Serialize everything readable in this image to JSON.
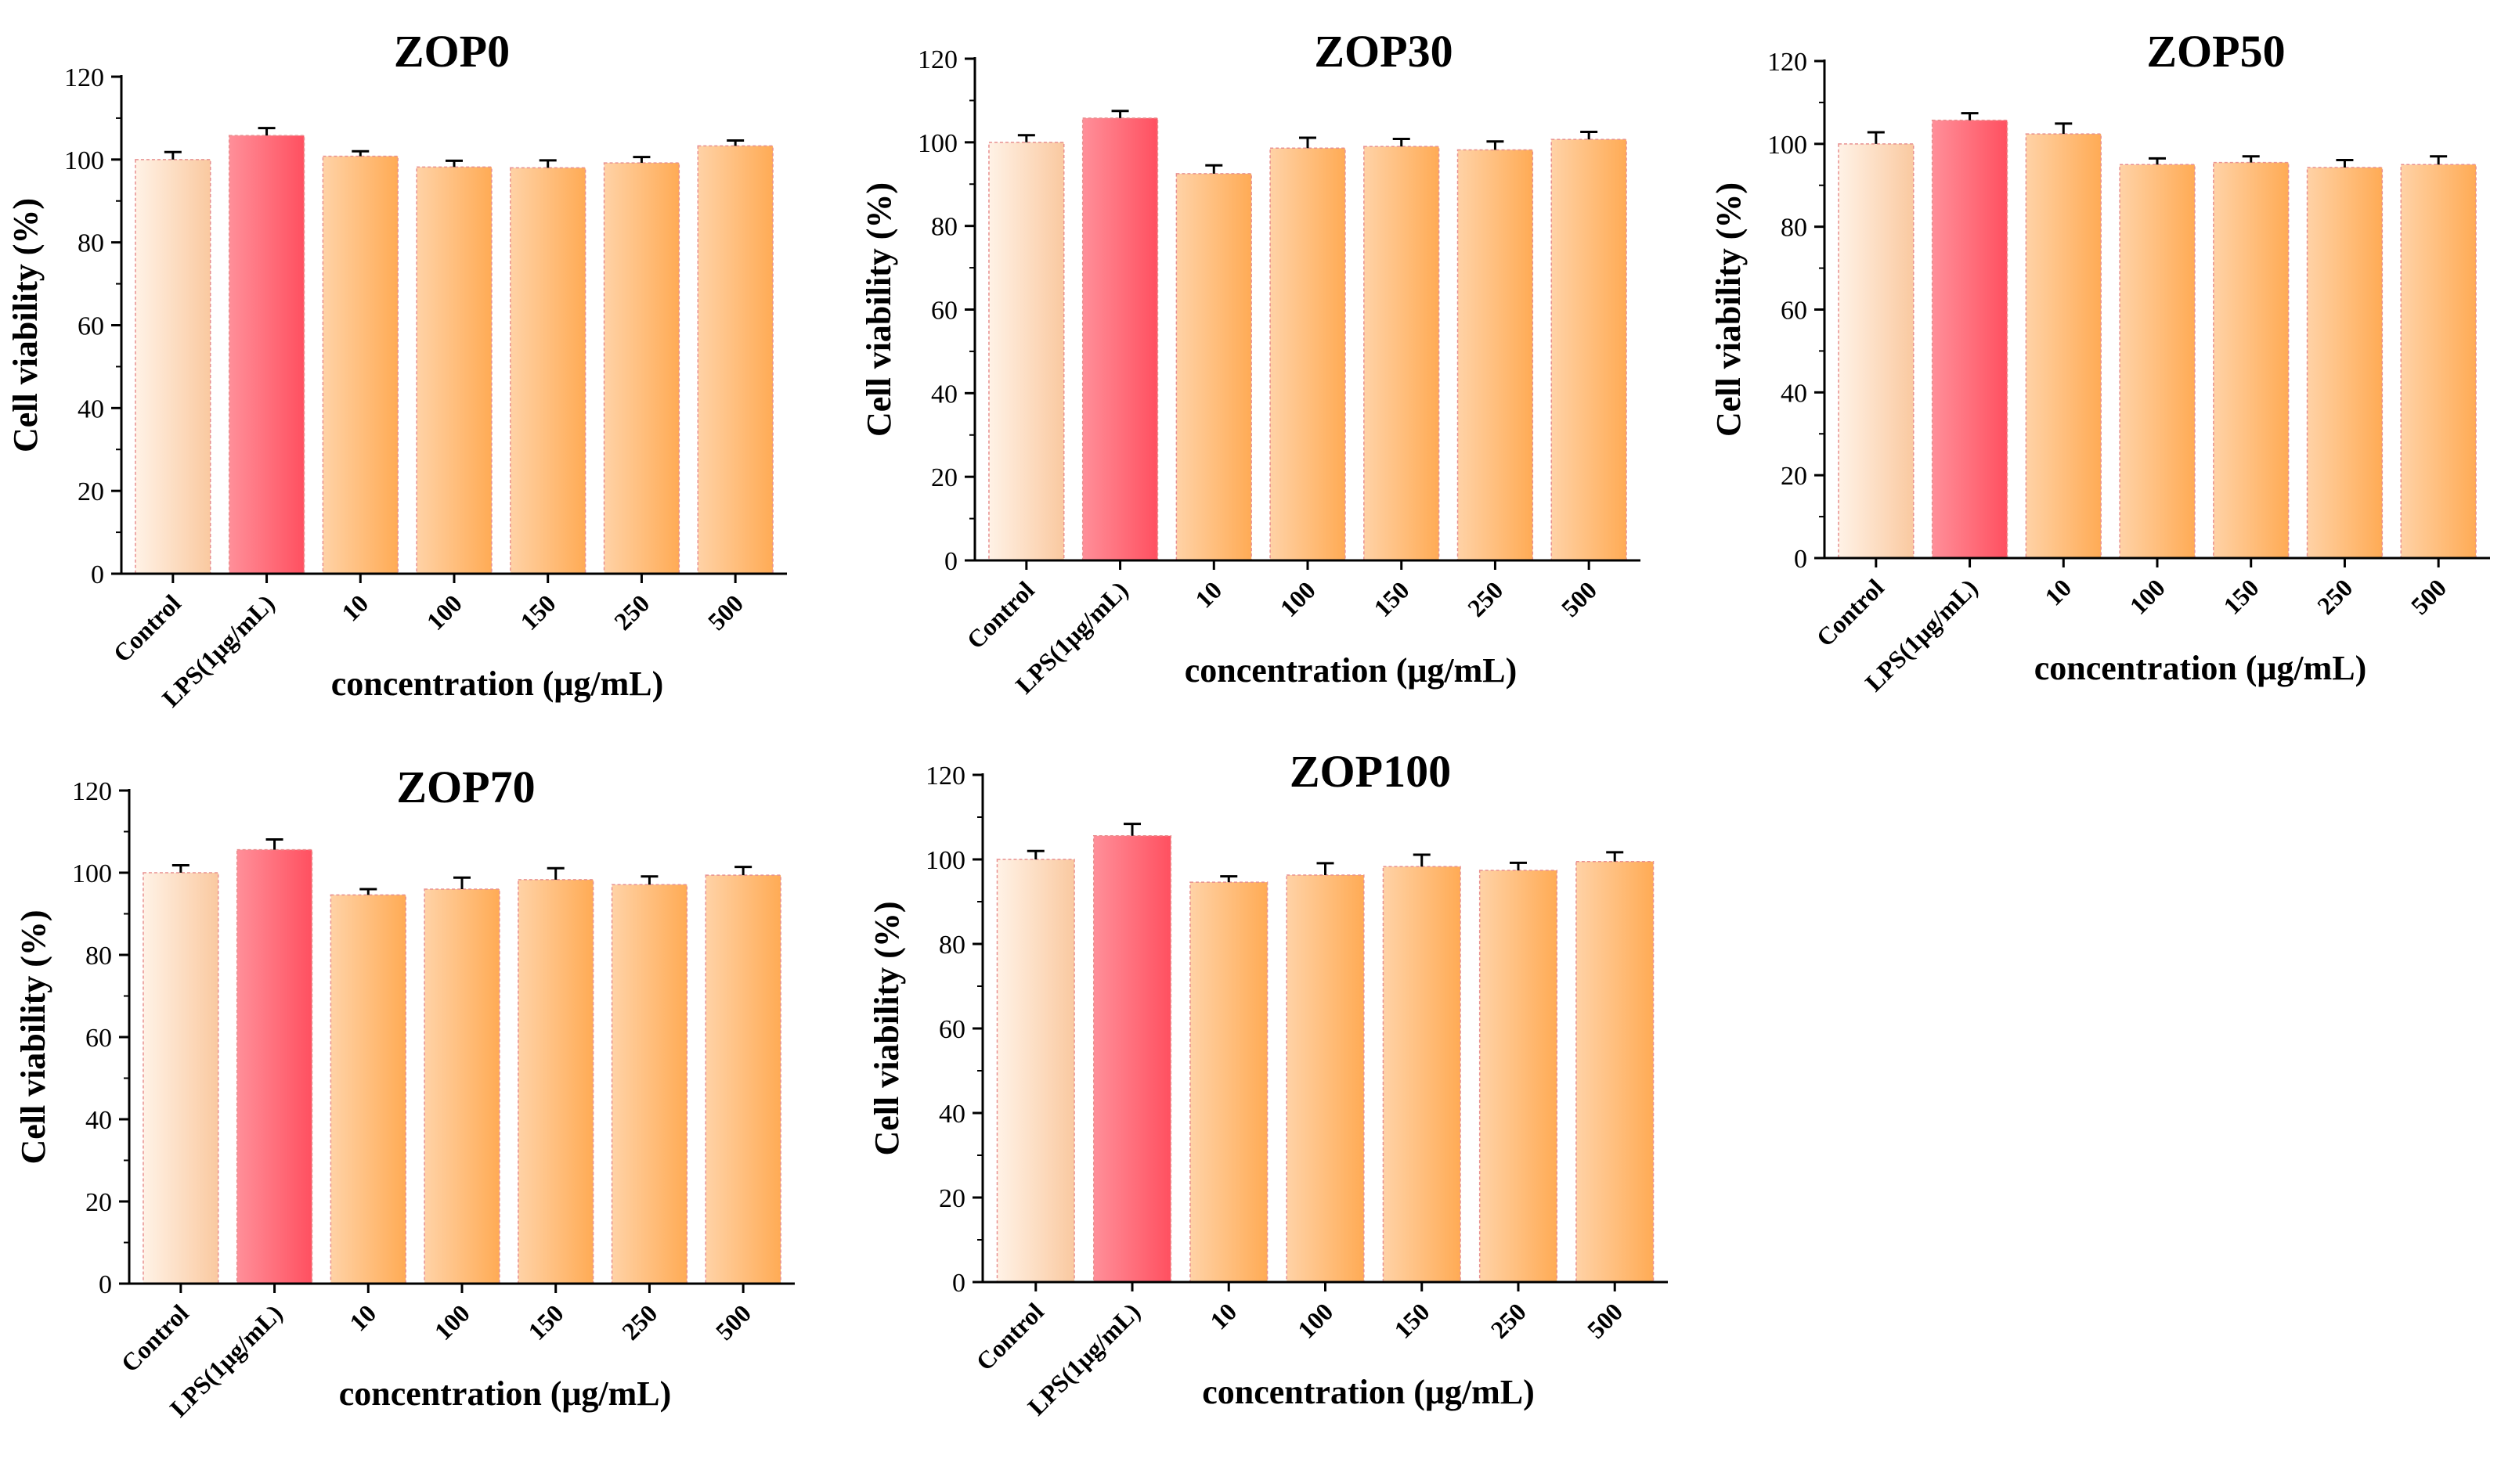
{
  "colors": {
    "control_light": "#fff2e6",
    "control_dark": "#fac9a0",
    "lps_light": "#ff8f99",
    "lps_dark": "#ff5060",
    "dose_light": "#ffd2a6",
    "dose_dark": "#ffab55",
    "bar_edge": "#e89090"
  },
  "chart_data": [
    {
      "type": "bar",
      "title": "ZOP0",
      "xlabel": "concentration (μg/mL)",
      "ylabel": "Cell viability (%)",
      "ylim": [
        0,
        120
      ],
      "yticks": [
        "0",
        "20",
        "40",
        "60",
        "80",
        "100",
        "120"
      ],
      "categories": [
        "Control",
        "LPS(1μg/mL)",
        "10",
        "100",
        "150",
        "250",
        "500"
      ],
      "values": [
        100,
        105.8,
        100.8,
        98.2,
        98.0,
        99.2,
        103.3
      ],
      "errors": [
        1.8,
        1.8,
        1.2,
        1.5,
        1.8,
        1.4,
        1.3
      ]
    },
    {
      "type": "bar",
      "title": "ZOP30",
      "xlabel": "concentration (μg/mL)",
      "ylabel": "Cell viability (%)",
      "ylim": [
        0,
        120
      ],
      "yticks": [
        "0",
        "20",
        "40",
        "60",
        "80",
        "100",
        "120"
      ],
      "categories": [
        "Control",
        "LPS(1μg/mL)",
        "10",
        "100",
        "150",
        "250",
        "500"
      ],
      "values": [
        100,
        105.8,
        92.5,
        98.6,
        99.0,
        98.2,
        100.7
      ],
      "errors": [
        1.7,
        1.7,
        2.0,
        2.5,
        1.8,
        2.0,
        1.8
      ]
    },
    {
      "type": "bar",
      "title": "ZOP50",
      "xlabel": "concentration (μg/mL)",
      "ylabel": "Cell viability (%)",
      "ylim": [
        0,
        120
      ],
      "yticks": [
        "0",
        "20",
        "40",
        "60",
        "80",
        "100",
        "120"
      ],
      "categories": [
        "Control",
        "LPS(1μg/mL)",
        "10",
        "100",
        "150",
        "250",
        "500"
      ],
      "values": [
        100,
        105.7,
        102.4,
        95.0,
        95.5,
        94.3,
        95.0
      ],
      "errors": [
        2.8,
        1.7,
        2.5,
        1.5,
        1.5,
        1.8,
        2.0
      ]
    },
    {
      "type": "bar",
      "title": "ZOP70",
      "xlabel": "concentration (μg/mL)",
      "ylabel": "Cell viability (%)",
      "ylim": [
        0,
        120
      ],
      "yticks": [
        "0",
        "20",
        "40",
        "60",
        "80",
        "100",
        "120"
      ],
      "categories": [
        "Control",
        "LPS(1μg/mL)",
        "10",
        "100",
        "150",
        "250",
        "500"
      ],
      "values": [
        100,
        105.6,
        94.6,
        96.0,
        98.3,
        97.1,
        99.4
      ],
      "errors": [
        1.8,
        2.5,
        1.4,
        2.8,
        2.8,
        2.0,
        2.0
      ]
    },
    {
      "type": "bar",
      "title": "ZOP100",
      "xlabel": "concentration (μg/mL)",
      "ylabel": "Cell viability (%)",
      "ylim": [
        0,
        120
      ],
      "yticks": [
        "0",
        "20",
        "40",
        "60",
        "80",
        "100",
        "120"
      ],
      "categories": [
        "Control",
        "LPS(1μg/mL)",
        "10",
        "100",
        "150",
        "250",
        "500"
      ],
      "values": [
        100,
        105.6,
        94.6,
        96.3,
        98.3,
        97.4,
        99.5
      ],
      "errors": [
        2.0,
        2.8,
        1.4,
        2.8,
        2.8,
        1.8,
        2.2
      ]
    }
  ]
}
